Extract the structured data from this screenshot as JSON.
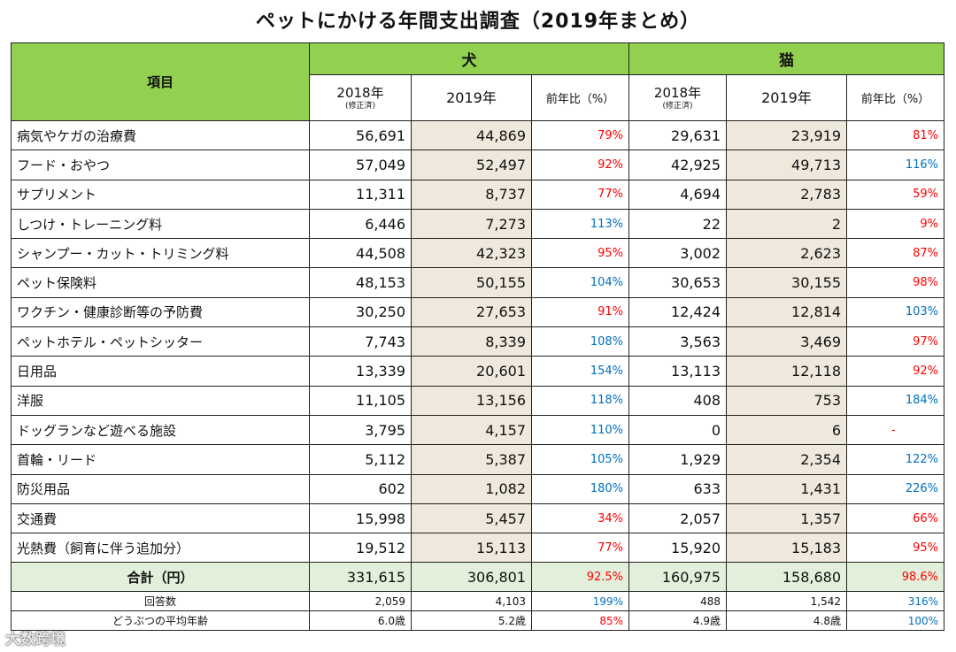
{
  "title": "ペットにかける年間支出調査（2019年まとめ）",
  "headers": {
    "item": "項目",
    "dog": "犬",
    "cat": "猫",
    "y2018": "2018年",
    "y2018_note": "(修正済)",
    "y2019": "2019年",
    "yoy": "前年比（%）"
  },
  "rows": [
    {
      "item": "病気やケガの治療費",
      "d18": "56,691",
      "d19": "44,869",
      "dp": "79%",
      "dc": "red",
      "c18": "29,631",
      "c19": "23,919",
      "cp": "81%",
      "cc": "red"
    },
    {
      "item": "フード・おやつ",
      "d18": "57,049",
      "d19": "52,497",
      "dp": "92%",
      "dc": "red",
      "c18": "42,925",
      "c19": "49,713",
      "cp": "116%",
      "cc": "blue"
    },
    {
      "item": "サプリメント",
      "d18": "11,311",
      "d19": "8,737",
      "dp": "77%",
      "dc": "red",
      "c18": "4,694",
      "c19": "2,783",
      "cp": "59%",
      "cc": "red"
    },
    {
      "item": "しつけ・トレーニング料",
      "d18": "6,446",
      "d19": "7,273",
      "dp": "113%",
      "dc": "blue",
      "c18": "22",
      "c19": "2",
      "cp": "9%",
      "cc": "red"
    },
    {
      "item": "シャンプー・カット・トリミング料",
      "d18": "44,508",
      "d19": "42,323",
      "dp": "95%",
      "dc": "red",
      "c18": "3,002",
      "c19": "2,623",
      "cp": "87%",
      "cc": "red"
    },
    {
      "item": "ペット保険料",
      "d18": "48,153",
      "d19": "50,155",
      "dp": "104%",
      "dc": "blue",
      "c18": "30,653",
      "c19": "30,155",
      "cp": "98%",
      "cc": "red"
    },
    {
      "item": "ワクチン・健康診断等の予防費",
      "d18": "30,250",
      "d19": "27,653",
      "dp": "91%",
      "dc": "red",
      "c18": "12,424",
      "c19": "12,814",
      "cp": "103%",
      "cc": "blue"
    },
    {
      "item": "ペットホテル・ペットシッター",
      "d18": "7,743",
      "d19": "8,339",
      "dp": "108%",
      "dc": "blue",
      "c18": "3,563",
      "c19": "3,469",
      "cp": "97%",
      "cc": "red"
    },
    {
      "item": "日用品",
      "d18": "13,339",
      "d19": "20,601",
      "dp": "154%",
      "dc": "blue",
      "c18": "13,113",
      "c19": "12,118",
      "cp": "92%",
      "cc": "red"
    },
    {
      "item": "洋服",
      "d18": "11,105",
      "d19": "13,156",
      "dp": "118%",
      "dc": "blue",
      "c18": "408",
      "c19": "753",
      "cp": "184%",
      "cc": "blue"
    },
    {
      "item": "ドッグランなど遊べる施設",
      "d18": "3,795",
      "d19": "4,157",
      "dp": "110%",
      "dc": "blue",
      "c18": "0",
      "c19": "6",
      "cp": "-",
      "cc": "dash"
    },
    {
      "item": "首輪・リード",
      "d18": "5,112",
      "d19": "5,387",
      "dp": "105%",
      "dc": "blue",
      "c18": "1,929",
      "c19": "2,354",
      "cp": "122%",
      "cc": "blue"
    },
    {
      "item": "防災用品",
      "d18": "602",
      "d19": "1,082",
      "dp": "180%",
      "dc": "blue",
      "c18": "633",
      "c19": "1,431",
      "cp": "226%",
      "cc": "blue"
    },
    {
      "item": "交通費",
      "d18": "15,998",
      "d19": "5,457",
      "dp": "34%",
      "dc": "red",
      "c18": "2,057",
      "c19": "1,357",
      "cp": "66%",
      "cc": "red"
    },
    {
      "item": "光熱費（飼育に伴う追加分）",
      "d18": "19,512",
      "d19": "15,113",
      "dp": "77%",
      "dc": "red",
      "c18": "15,920",
      "c19": "15,183",
      "cp": "95%",
      "cc": "red"
    }
  ],
  "total": {
    "label": "合計（円）",
    "d18": "331,615",
    "d19": "306,801",
    "dp": "92.5%",
    "c18": "160,975",
    "c19": "158,680",
    "cp": "98.6%"
  },
  "answers": {
    "label": "回答数",
    "d18": "2,059",
    "d19": "4,103",
    "dp": "199%",
    "c18": "488",
    "c19": "1,542",
    "cp": "316%"
  },
  "age": {
    "label": "どうぶつの平均年齢",
    "d18": "6.0歳",
    "d19": "5.2歳",
    "dp": "85%",
    "c18": "4.9歳",
    "c19": "4.8歳",
    "cp": "100%"
  },
  "watermark": "大数跨境"
}
